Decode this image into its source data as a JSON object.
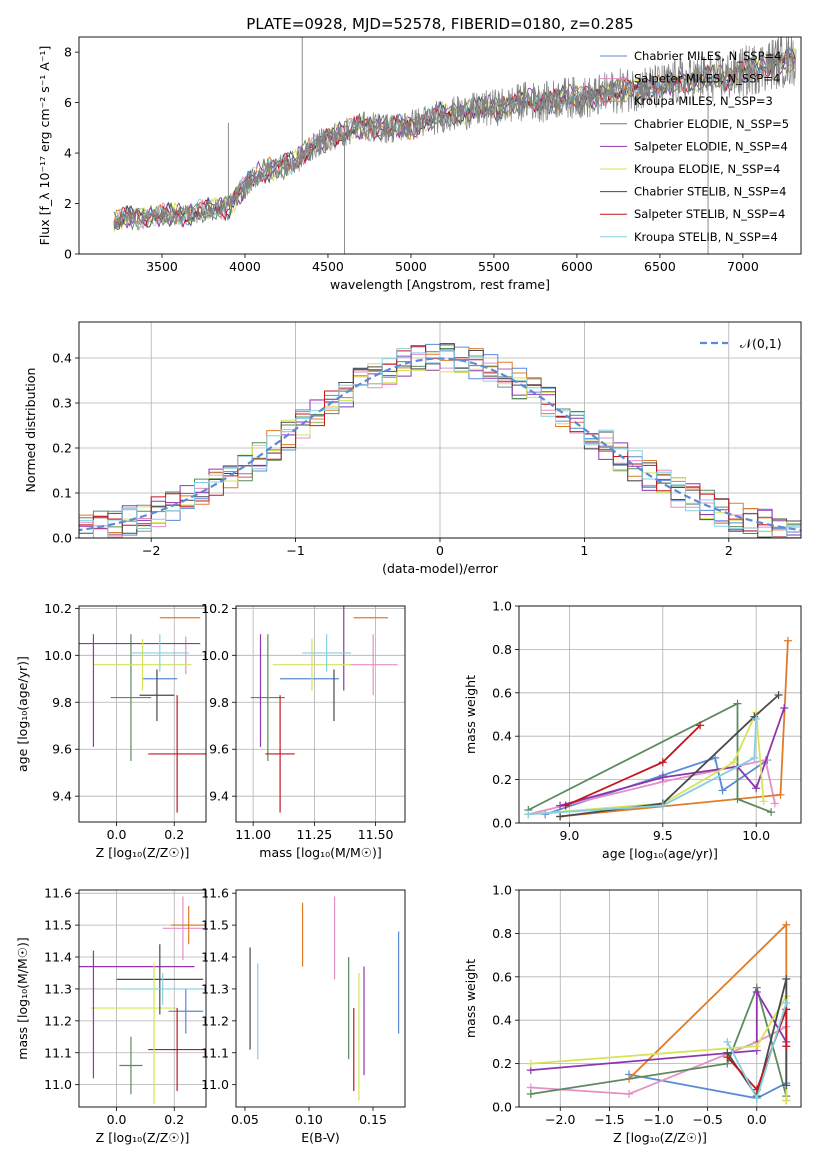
{
  "figure": {
    "title": "PLATE=0928, MJD=52578, FIBERID=0180, z=0.285",
    "colors": {
      "Chabrier MILES": "#5a8ad6",
      "Salpeter MILES": "#e58fc7",
      "Kroupa MILES": "#e07b28",
      "Chabrier ELODIE": "#5c8a5e",
      "Salpeter ELODIE": "#8e35b0",
      "Kroupa ELODIE": "#d6e35a",
      "Chabrier STELIB": "#4a4a4a",
      "Salpeter STELIB": "#c4161c",
      "Kroupa STELIB": "#86cfe0",
      "data": "#808080",
      "normal": "#5b8ad6"
    }
  },
  "chart_data": [
    {
      "id": "spectrum",
      "type": "line",
      "xlabel": "wavelength [Angstrom, rest frame]",
      "ylabel": "Flux [f_λ 10⁻¹⁷ erg cm⁻² s⁻¹ A⁻¹]",
      "xlim": [
        3000,
        7350
      ],
      "ylim": [
        0,
        8.6
      ],
      "xticks": [
        3500,
        4000,
        4500,
        5000,
        5500,
        6000,
        6500,
        7000
      ],
      "yticks": [
        0,
        2,
        4,
        6,
        8
      ],
      "grid": false,
      "legend_position": "upper-right",
      "continuum": {
        "x": [
          3210,
          3300,
          3500,
          3700,
          3900,
          3950,
          4050,
          4150,
          4300,
          4400,
          4500,
          4600,
          4700,
          4800,
          4900,
          5000,
          5100,
          5200,
          5300,
          5400,
          5500,
          5600,
          5700,
          5800,
          5900,
          6000,
          6100,
          6200,
          6300,
          6400,
          6500,
          6600,
          6700,
          6800,
          6900,
          7000,
          7100,
          7200,
          7300
        ],
        "y": [
          1.2,
          1.5,
          1.5,
          1.6,
          1.9,
          2.3,
          3.0,
          3.4,
          3.6,
          4.2,
          4.6,
          4.8,
          5.1,
          5.0,
          5.0,
          5.1,
          5.3,
          5.5,
          5.6,
          5.7,
          5.8,
          5.9,
          6.1,
          6.0,
          6.2,
          6.2,
          6.2,
          6.4,
          6.5,
          6.6,
          6.6,
          6.8,
          6.9,
          7.0,
          7.0,
          7.2,
          7.4,
          7.6,
          7.7
        ]
      },
      "data_range": [
        3210,
        7320
      ],
      "spikes": [
        {
          "x": 3900,
          "y": 5.2
        },
        {
          "x": 4345,
          "y": 8.6
        },
        {
          "x": 4600,
          "y": 0.0
        },
        {
          "x": 6790,
          "y": 0.0
        }
      ],
      "series": [
        {
          "name": "Chabrier MILES, N_SSP=4",
          "key": "Chabrier MILES"
        },
        {
          "name": "Salpeter MILES, N_SSP=4",
          "key": "Salpeter MILES"
        },
        {
          "name": "Kroupa MILES, N_SSP=3",
          "key": "Kroupa MILES"
        },
        {
          "name": "Chabrier ELODIE, N_SSP=5",
          "key": "Chabrier ELODIE"
        },
        {
          "name": "Salpeter ELODIE, N_SSP=4",
          "key": "Salpeter ELODIE"
        },
        {
          "name": "Kroupa ELODIE, N_SSP=4",
          "key": "Kroupa ELODIE"
        },
        {
          "name": "Chabrier STELIB, N_SSP=4",
          "key": "Chabrier STELIB"
        },
        {
          "name": "Salpeter STELIB, N_SSP=4",
          "key": "Salpeter STELIB"
        },
        {
          "name": "Kroupa STELIB, N_SSP=4",
          "key": "Kroupa STELIB"
        }
      ]
    },
    {
      "id": "residuals",
      "type": "histogram",
      "xlabel": "(data-model)/error",
      "ylabel": "Normed distribution",
      "xlim": [
        -2.5,
        2.5
      ],
      "ylim": [
        0,
        0.48
      ],
      "xticks": [
        -2,
        -1,
        0,
        1,
        2
      ],
      "yticks": [
        0.0,
        0.1,
        0.2,
        0.3,
        0.4
      ],
      "grid": true,
      "legend": "𝒩(0,1)",
      "legend_position": "upper-right",
      "bin_width": 0.1
    },
    {
      "id": "age-vs-Z",
      "type": "errorbar",
      "xlabel": "Z [log₁₀(Z/Z☉)]",
      "ylabel": "age [log₁₀(age/yr)]",
      "xlim": [
        -0.13,
        0.31
      ],
      "ylim": [
        9.29,
        10.21
      ],
      "xticks": [
        0.0,
        0.2
      ],
      "yticks": [
        9.4,
        9.6,
        9.8,
        10.0,
        10.2
      ],
      "grid": true,
      "points": [
        {
          "key": "Chabrier MILES",
          "x": 0.15,
          "xerr": 0.06,
          "y": 9.9,
          "yerr": 0.0
        },
        {
          "key": "Salpeter MILES",
          "x": 0.24,
          "xerr": 0.0,
          "y": 10.0,
          "yerr": 0.08
        },
        {
          "key": "Kroupa MILES",
          "x": 0.22,
          "xerr": 0.07,
          "y": 10.16,
          "yerr": 0.0
        },
        {
          "key": "Chabrier ELODIE",
          "x": 0.05,
          "xerr": 0.07,
          "y": 9.82,
          "yerr": 0.27
        },
        {
          "key": "Salpeter ELODIE",
          "x": 0.08,
          "xerr": 0.21,
          "y": 10.05,
          "yerr": 0.0
        },
        {
          "key": "Kroupa ELODIE",
          "x": 0.09,
          "xerr": 0.17,
          "y": 9.96,
          "yerr": 0.11
        },
        {
          "key": "Chabrier STELIB",
          "x": 0.14,
          "xerr": 0.06,
          "y": 9.83,
          "yerr": 0.11
        },
        {
          "key": "Salpeter STELIB",
          "x": 0.21,
          "xerr": 0.1,
          "y": 9.58,
          "yerr": 0.25
        },
        {
          "key": "Kroupa STELIB",
          "x": 0.15,
          "xerr": 0.1,
          "y": 10.01,
          "yerr": 0.08
        },
        {
          "key": "Salpeter ELODIE",
          "x": -0.08,
          "xerr": 0.0,
          "y": 9.85,
          "yerr": 0.24
        }
      ]
    },
    {
      "id": "age-vs-mass",
      "type": "errorbar",
      "xlabel": "mass [log₁₀(M/M☉)]",
      "ylabel": "",
      "xlim": [
        10.93,
        11.62
      ],
      "ylim": [
        9.29,
        10.21
      ],
      "xticks": [
        11.0,
        11.25,
        11.5
      ],
      "yticks": [
        9.4,
        9.6,
        9.8,
        10.0,
        10.2
      ],
      "grid": true,
      "points": [
        {
          "key": "Chabrier MILES",
          "x": 11.23,
          "xerr": 0.12,
          "y": 9.9,
          "yerr": 0.0
        },
        {
          "key": "Salpeter MILES",
          "x": 11.49,
          "xerr": 0.1,
          "y": 9.96,
          "yerr": 0.13
        },
        {
          "key": "Kroupa MILES",
          "x": 11.48,
          "xerr": 0.07,
          "y": 10.16,
          "yerr": 0.0
        },
        {
          "key": "Chabrier ELODIE",
          "x": 11.06,
          "xerr": 0.07,
          "y": 9.82,
          "yerr": 0.27
        },
        {
          "key": "Salpeter ELODIE",
          "x": 11.37,
          "xerr": 0.0,
          "y": 10.05,
          "yerr": 0.2
        },
        {
          "key": "Kroupa ELODIE",
          "x": 11.24,
          "xerr": 0.16,
          "y": 9.96,
          "yerr": 0.11
        },
        {
          "key": "Chabrier STELIB",
          "x": 11.33,
          "xerr": 0.0,
          "y": 9.83,
          "yerr": 0.11
        },
        {
          "key": "Salpeter STELIB",
          "x": 11.11,
          "xerr": 0.06,
          "y": 9.58,
          "yerr": 0.25
        },
        {
          "key": "Kroupa STELIB",
          "x": 11.3,
          "xerr": 0.1,
          "y": 10.01,
          "yerr": 0.08
        },
        {
          "key": "Salpeter ELODIE",
          "x": 11.03,
          "xerr": 0.0,
          "y": 9.85,
          "yerr": 0.24
        }
      ]
    },
    {
      "id": "mass-vs-Z",
      "type": "errorbar",
      "xlabel": "Z [log₁₀(Z/Z☉)]",
      "ylabel": "mass [log₁₀(M/M☉)]",
      "xlim": [
        -0.13,
        0.31
      ],
      "ylim": [
        10.93,
        11.61
      ],
      "xticks": [
        0.0,
        0.2
      ],
      "yticks": [
        11.0,
        11.1,
        11.2,
        11.3,
        11.4,
        11.5,
        11.6
      ],
      "grid": true,
      "points": [
        {
          "key": "Chabrier MILES",
          "x": 0.24,
          "xerr": 0.06,
          "y": 11.23,
          "yerr": 0.07
        },
        {
          "key": "Salpeter MILES",
          "x": 0.23,
          "xerr": 0.07,
          "y": 11.49,
          "yerr": 0.1
        },
        {
          "key": "Kroupa MILES",
          "x": 0.25,
          "xerr": 0.06,
          "y": 11.5,
          "yerr": 0.06
        },
        {
          "key": "Chabrier ELODIE",
          "x": 0.05,
          "xerr": 0.04,
          "y": 11.06,
          "yerr": 0.09
        },
        {
          "key": "Salpeter ELODIE",
          "x": 0.07,
          "xerr": 0.2,
          "y": 11.37,
          "yerr": 0.0
        },
        {
          "key": "Kroupa ELODIE",
          "x": 0.06,
          "xerr": 0.15,
          "y": 11.24,
          "yerr": 0.0
        },
        {
          "key": "Chabrier STELIB",
          "x": 0.15,
          "xerr": 0.15,
          "y": 11.33,
          "yerr": 0.11
        },
        {
          "key": "Salpeter STELIB",
          "x": 0.21,
          "xerr": 0.1,
          "y": 11.11,
          "yerr": 0.13
        },
        {
          "key": "Kroupa STELIB",
          "x": 0.16,
          "xerr": 0.14,
          "y": 11.3,
          "yerr": 0.05
        },
        {
          "key": "Salpeter ELODIE",
          "x": -0.08,
          "xerr": 0.0,
          "y": 11.22,
          "yerr": 0.2
        },
        {
          "key": "Kroupa ELODIE",
          "x": 0.13,
          "xerr": 0.0,
          "y": 11.16,
          "yerr": 0.22
        }
      ]
    },
    {
      "id": "mass-vs-ebv",
      "type": "errorbar",
      "xlabel": "E(B-V)",
      "ylabel": "",
      "xlim": [
        0.043,
        0.175
      ],
      "ylim": [
        10.93,
        11.61
      ],
      "xticks": [
        0.05,
        0.1,
        0.15
      ],
      "yticks": [
        11.0,
        11.1,
        11.2,
        11.3,
        11.4,
        11.5,
        11.6
      ],
      "grid": false,
      "points": [
        {
          "key": "Chabrier STELIB",
          "x": 0.054,
          "xerr": 0.0,
          "y": 11.27,
          "yerr": 0.16
        },
        {
          "key": "Kroupa STELIB",
          "x": 0.06,
          "xerr": 0.0,
          "y": 11.23,
          "yerr": 0.15
        },
        {
          "key": "Kroupa MILES",
          "x": 0.095,
          "xerr": 0.0,
          "y": 11.47,
          "yerr": 0.1
        },
        {
          "key": "Salpeter MILES",
          "x": 0.12,
          "xerr": 0.0,
          "y": 11.46,
          "yerr": 0.13
        },
        {
          "key": "Chabrier ELODIE",
          "x": 0.131,
          "xerr": 0.0,
          "y": 11.24,
          "yerr": 0.16
        },
        {
          "key": "Salpeter STELIB",
          "x": 0.135,
          "xerr": 0.0,
          "y": 11.11,
          "yerr": 0.13
        },
        {
          "key": "Kroupa ELODIE",
          "x": 0.139,
          "xerr": 0.0,
          "y": 11.15,
          "yerr": 0.2
        },
        {
          "key": "Salpeter ELODIE",
          "x": 0.143,
          "xerr": 0.0,
          "y": 11.2,
          "yerr": 0.17
        },
        {
          "key": "Chabrier MILES",
          "x": 0.17,
          "xerr": 0.0,
          "y": 11.32,
          "yerr": 0.16
        }
      ]
    },
    {
      "id": "weight-vs-age",
      "type": "line",
      "xlabel": "age [log₁₀(age/yr)]",
      "ylabel": "mass weight",
      "xlim": [
        8.73,
        10.24
      ],
      "ylim": [
        0,
        1.0
      ],
      "xticks": [
        9.0,
        9.5,
        10.0
      ],
      "yticks": [
        0.0,
        0.2,
        0.4,
        0.6,
        0.8,
        1.0
      ],
      "grid": true,
      "series": [
        {
          "key": "Chabrier MILES",
          "x": [
            8.87,
            9.5,
            9.78,
            9.82,
            10.06
          ],
          "y": [
            0.04,
            0.22,
            0.3,
            0.15,
            0.29
          ]
        },
        {
          "key": "Salpeter MILES",
          "x": [
            8.78,
            9.5,
            10.05,
            10.1
          ],
          "y": [
            0.04,
            0.19,
            0.29,
            0.09
          ]
        },
        {
          "key": "Kroupa MILES",
          "x": [
            8.95,
            10.13,
            10.17
          ],
          "y": [
            0.03,
            0.13,
            0.84
          ]
        },
        {
          "key": "Chabrier ELODIE",
          "x": [
            8.78,
            9.9,
            9.9,
            10.08
          ],
          "y": [
            0.06,
            0.55,
            0.11,
            0.05
          ]
        },
        {
          "key": "Salpeter ELODIE",
          "x": [
            8.95,
            9.5,
            9.9,
            10.0,
            10.15
          ],
          "y": [
            0.08,
            0.21,
            0.26,
            0.16,
            0.53
          ]
        },
        {
          "key": "Kroupa ELODIE",
          "x": [
            8.78,
            9.5,
            9.88,
            10.0,
            10.04
          ],
          "y": [
            0.04,
            0.09,
            0.28,
            0.51,
            0.1
          ]
        },
        {
          "key": "Chabrier STELIB",
          "x": [
            8.95,
            9.5,
            9.99,
            10.12
          ],
          "y": [
            0.03,
            0.09,
            0.49,
            0.59
          ]
        },
        {
          "key": "Salpeter STELIB",
          "x": [
            8.98,
            9.5,
            9.7
          ],
          "y": [
            0.08,
            0.28,
            0.45
          ]
        },
        {
          "key": "Kroupa STELIB",
          "x": [
            8.78,
            9.5,
            9.99,
            10.0
          ],
          "y": [
            0.04,
            0.08,
            0.3,
            0.48
          ]
        }
      ]
    },
    {
      "id": "weight-vs-Z",
      "type": "line",
      "xlabel": "Z [log₁₀(Z/Z☉)]",
      "ylabel": "mass weight",
      "xlim": [
        -2.42,
        0.45
      ],
      "ylim": [
        0,
        1.0
      ],
      "xticks": [
        -2.0,
        -1.5,
        -1.0,
        -0.5,
        0.0
      ],
      "yticks": [
        0.0,
        0.2,
        0.4,
        0.6,
        0.8,
        1.0
      ],
      "grid": true,
      "series": [
        {
          "key": "Chabrier MILES",
          "x": [
            -1.3,
            0.0,
            0.3
          ],
          "y": [
            0.15,
            0.04,
            0.11
          ]
        },
        {
          "key": "Salpeter MILES",
          "x": [
            -2.3,
            -1.3,
            0.0,
            0.3
          ],
          "y": [
            0.09,
            0.06,
            0.3,
            0.37
          ]
        },
        {
          "key": "Kroupa MILES",
          "x": [
            -1.3,
            0.3,
            0.3
          ],
          "y": [
            0.13,
            0.84,
            0.03
          ]
        },
        {
          "key": "Chabrier ELODIE",
          "x": [
            -2.3,
            -0.3,
            0.0,
            0.3
          ],
          "y": [
            0.06,
            0.2,
            0.55,
            0.05
          ]
        },
        {
          "key": "Salpeter ELODIE",
          "x": [
            -2.3,
            0.0,
            0.0,
            0.3
          ],
          "y": [
            0.17,
            0.26,
            0.53,
            0.3
          ]
        },
        {
          "key": "Kroupa ELODIE",
          "x": [
            -2.3,
            0.0,
            0.3,
            0.3
          ],
          "y": [
            0.2,
            0.28,
            0.51,
            0.03
          ]
        },
        {
          "key": "Chabrier STELIB",
          "x": [
            -0.3,
            0.0,
            0.3,
            0.3
          ],
          "y": [
            0.25,
            0.05,
            0.59,
            0.1
          ]
        },
        {
          "key": "Salpeter STELIB",
          "x": [
            -0.3,
            0.0,
            0.3,
            0.3
          ],
          "y": [
            0.23,
            0.08,
            0.45,
            0.28
          ]
        },
        {
          "key": "Kroupa STELIB",
          "x": [
            -0.3,
            0.0,
            0.3
          ],
          "y": [
            0.3,
            0.04,
            0.48
          ]
        }
      ]
    }
  ]
}
